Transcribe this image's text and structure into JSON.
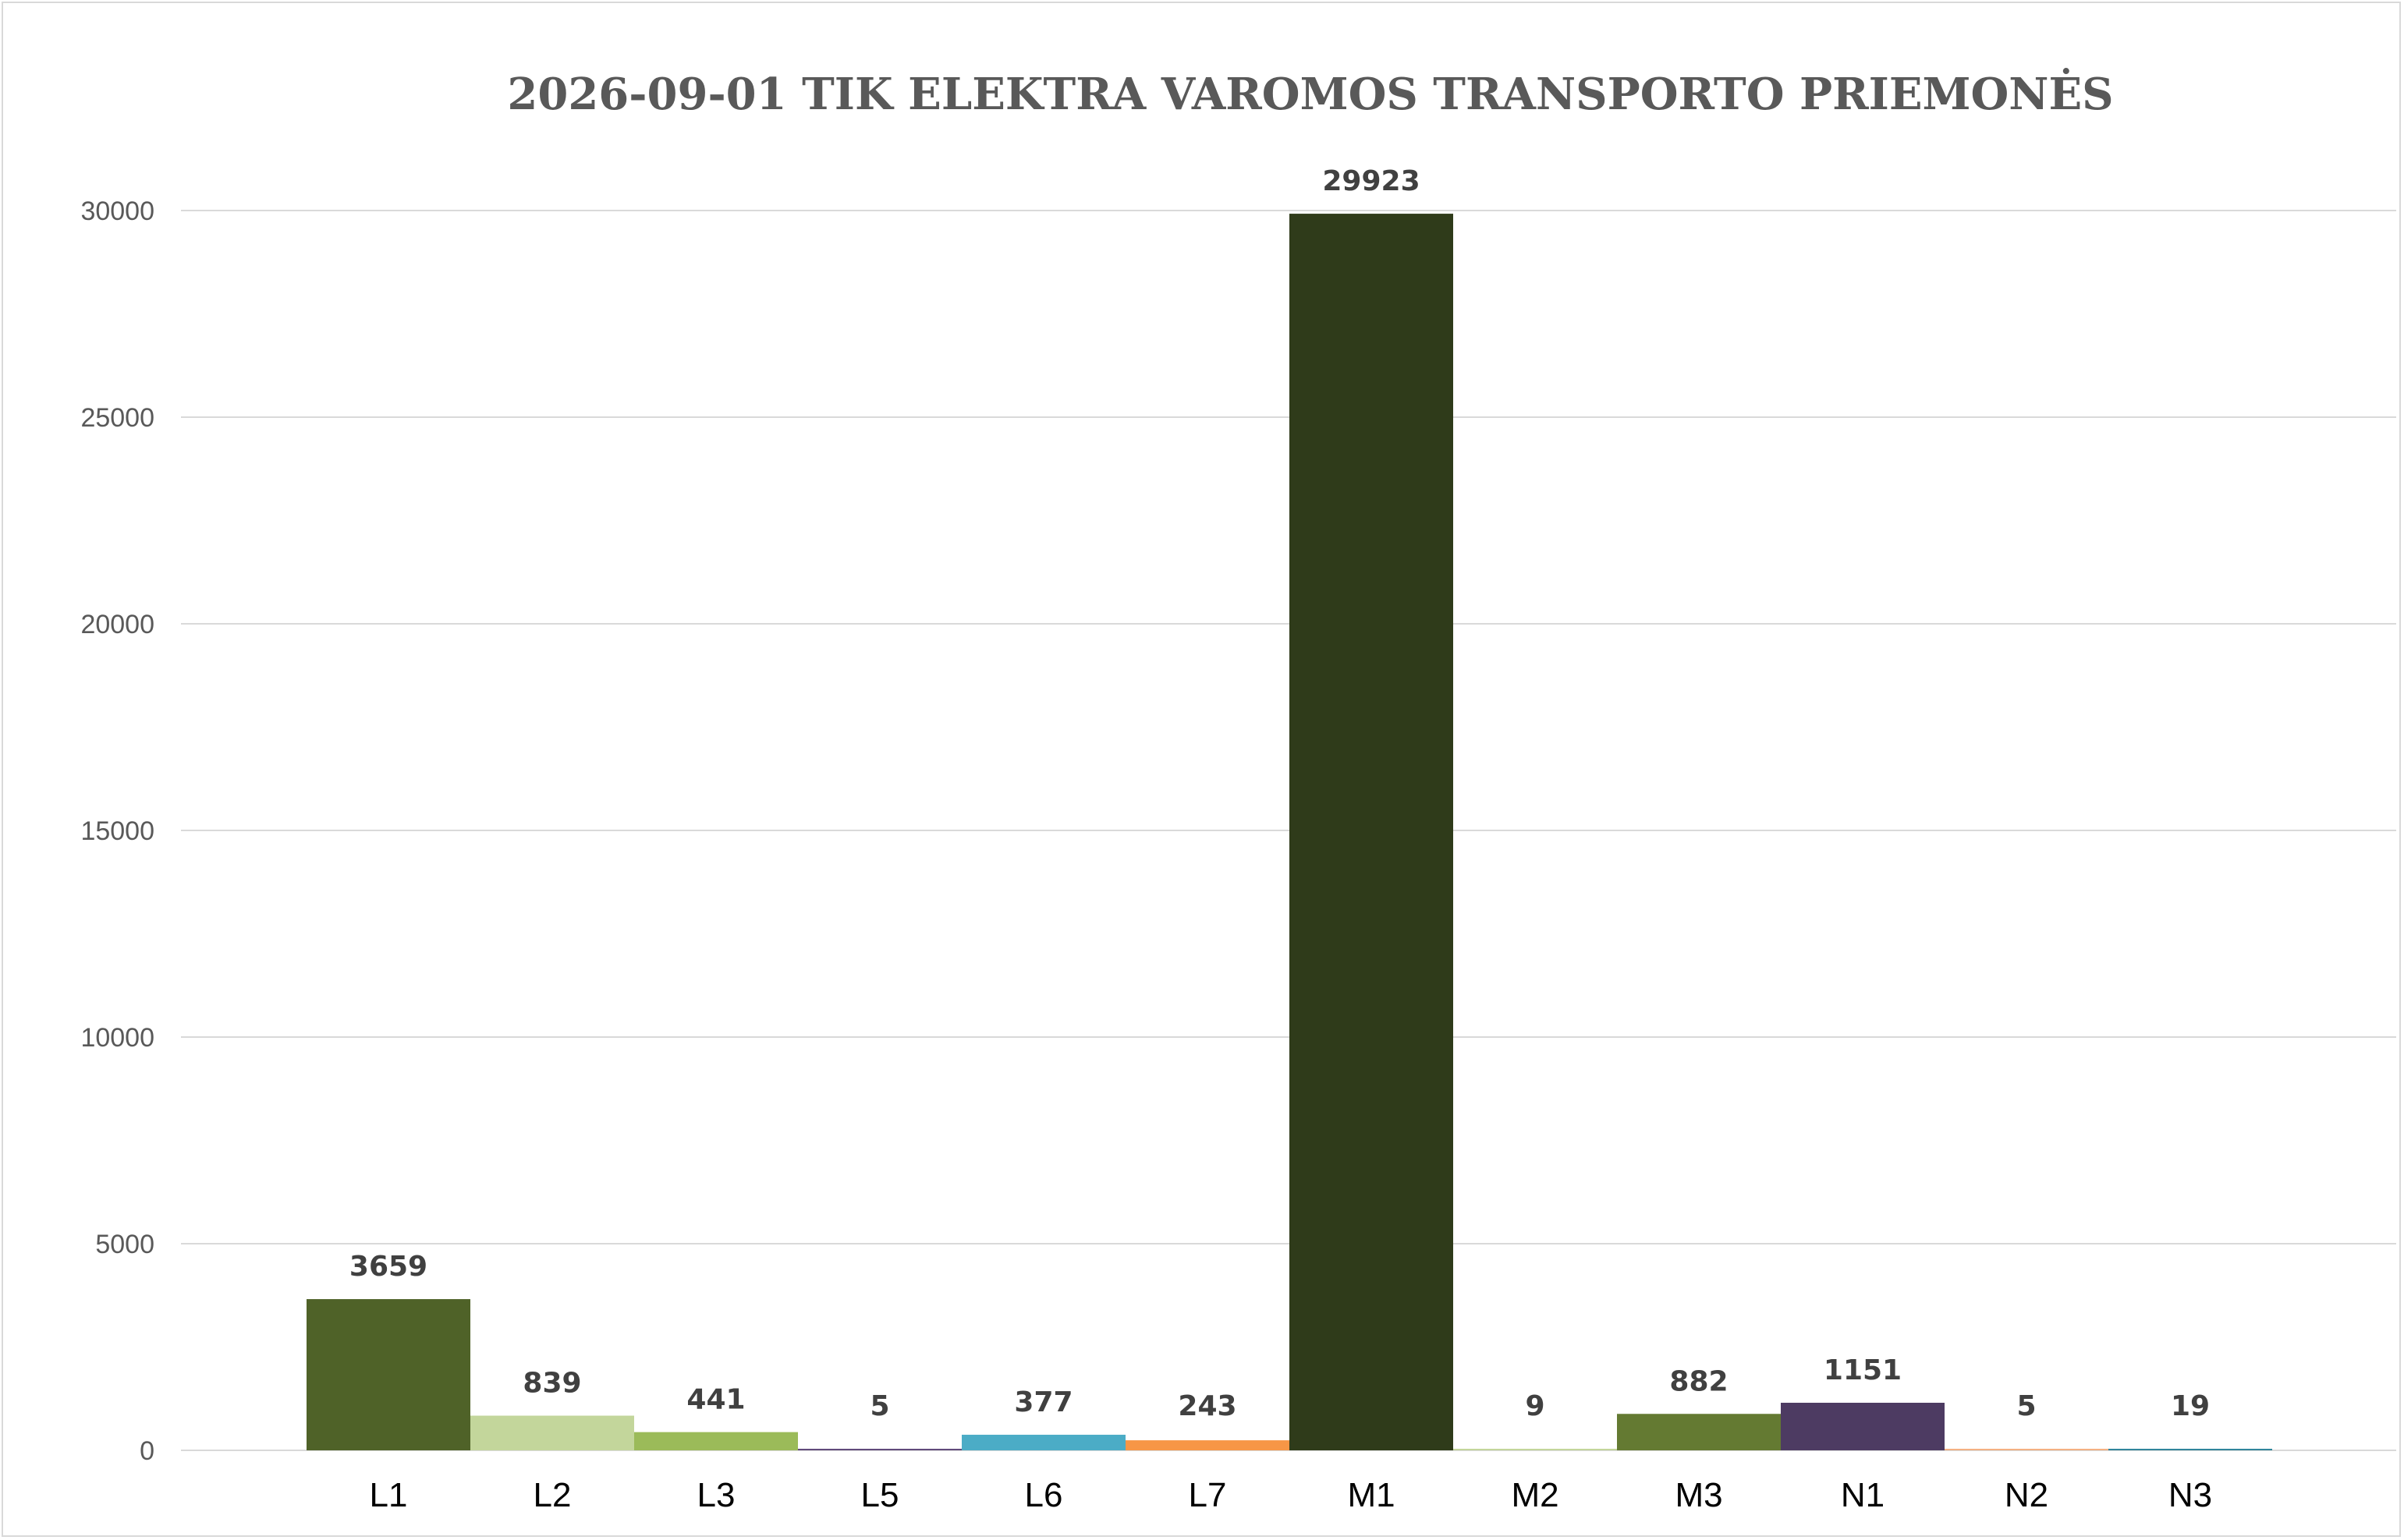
{
  "chart_data": {
    "type": "bar",
    "title": "2026-09-01 TIK ELEKTRA VAROMOS TRANSPORTO PRIEMONĖS",
    "xlabel": "",
    "ylabel": "",
    "categories": [
      "L1",
      "L2",
      "L3",
      "L5",
      "L6",
      "L7",
      "M1",
      "M2",
      "M3",
      "N1",
      "N2",
      "N3"
    ],
    "values": [
      3659,
      839,
      441,
      5,
      377,
      243,
      29923,
      9,
      882,
      1151,
      5,
      19
    ],
    "data_labels": [
      "3659",
      "839",
      "441",
      "5",
      "377",
      "243",
      "29923",
      "9",
      "882",
      "1151",
      "5",
      "19"
    ],
    "colors": [
      "#4f6228",
      "#c3d69b",
      "#9bbb59",
      "#604a7b",
      "#4bacc6",
      "#f79646",
      "#2f3b1a",
      "#c3d69b",
      "#647a32",
      "#4d3b62",
      "#f4b183",
      "#31859c"
    ],
    "ylim": [
      0,
      30000
    ],
    "yticks": [
      0,
      5000,
      10000,
      15000,
      20000,
      25000,
      30000
    ],
    "ytick_labels": [
      "0",
      "5000",
      "10000",
      "15000",
      "20000",
      "25000",
      "30000"
    ],
    "grid": true,
    "legend": "none"
  }
}
